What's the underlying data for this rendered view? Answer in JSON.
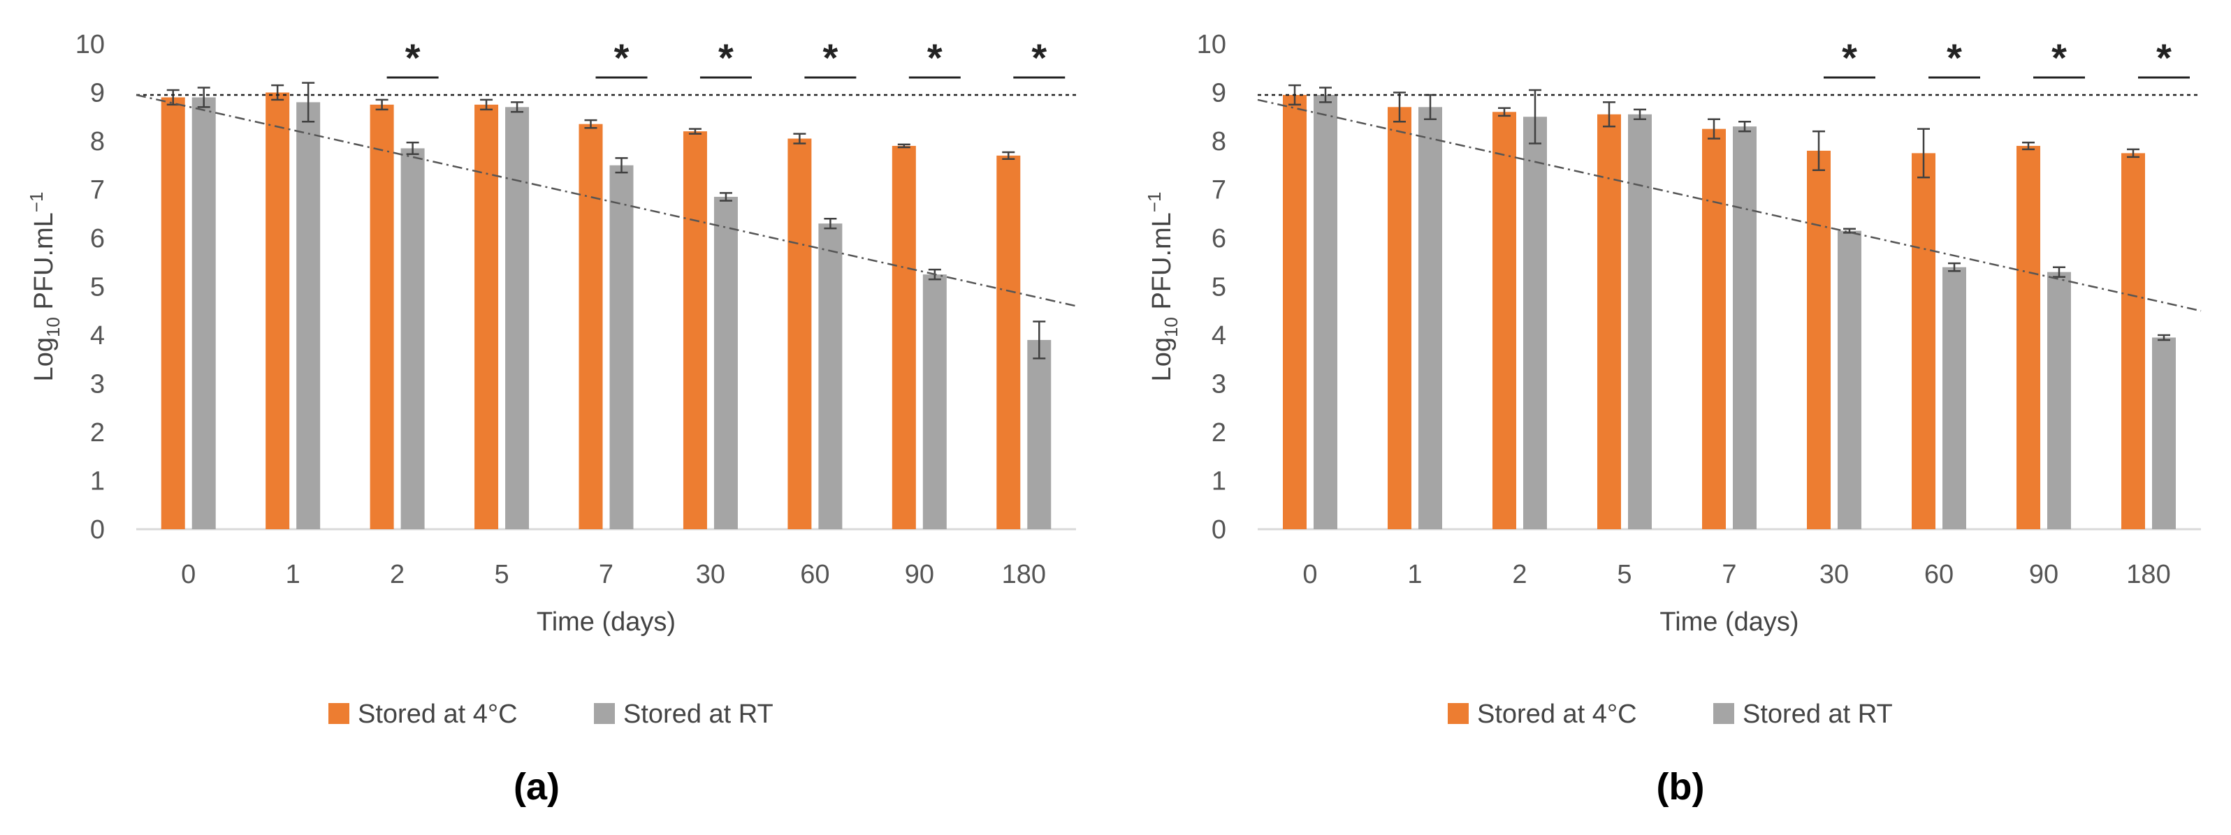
{
  "chart_data": [
    {
      "type": "bar",
      "panel_label": "(a)",
      "categories": [
        "0",
        "1",
        "2",
        "5",
        "7",
        "30",
        "60",
        "90",
        "180"
      ],
      "series": [
        {
          "name": "Stored at 4°C",
          "color": "#ED7D31",
          "values": [
            8.9,
            9.0,
            8.75,
            8.75,
            8.35,
            8.2,
            8.05,
            7.9,
            7.7
          ],
          "errors": [
            0.15,
            0.15,
            0.1,
            0.1,
            0.08,
            0.05,
            0.1,
            0.03,
            0.07
          ]
        },
        {
          "name": "Stored at RT",
          "color": "#A5A5A5",
          "values": [
            8.9,
            8.8,
            7.85,
            8.7,
            7.5,
            6.85,
            6.3,
            5.25,
            3.9
          ],
          "errors": [
            0.2,
            0.4,
            0.12,
            0.1,
            0.15,
            0.08,
            0.1,
            0.1,
            0.38
          ]
        }
      ],
      "significance": [
        "",
        "",
        "*",
        "",
        "*",
        "*",
        "*",
        "*",
        "*"
      ],
      "reference_line": 8.95,
      "trendline": {
        "start": 8.95,
        "end": 4.6
      },
      "xlabel": "Time (days)",
      "ylabel_main": "Log",
      "ylabel_sub": "10",
      "ylabel_rest": " PFU.mL",
      "ylabel_sup": "−1",
      "ylim": [
        0,
        10
      ],
      "yticks": [
        "0",
        "1",
        "2",
        "3",
        "4",
        "5",
        "6",
        "7",
        "8",
        "9",
        "10"
      ],
      "grid": false,
      "legend_position": "bottom"
    },
    {
      "type": "bar",
      "panel_label": "(b)",
      "categories": [
        "0",
        "1",
        "2",
        "5",
        "7",
        "30",
        "60",
        "90",
        "180"
      ],
      "series": [
        {
          "name": "Stored at 4°C",
          "color": "#ED7D31",
          "values": [
            8.95,
            8.7,
            8.6,
            8.55,
            8.25,
            7.8,
            7.75,
            7.9,
            7.75
          ],
          "errors": [
            0.2,
            0.3,
            0.08,
            0.25,
            0.2,
            0.4,
            0.5,
            0.07,
            0.08
          ]
        },
        {
          "name": "Stored at RT",
          "color": "#A5A5A5",
          "values": [
            8.95,
            8.7,
            8.5,
            8.55,
            8.3,
            6.15,
            5.4,
            5.3,
            3.95
          ],
          "errors": [
            0.15,
            0.25,
            0.55,
            0.1,
            0.1,
            0.04,
            0.08,
            0.1,
            0.05
          ]
        }
      ],
      "significance": [
        "",
        "",
        "",
        "",
        "",
        "*",
        "*",
        "*",
        "*"
      ],
      "reference_line": 8.95,
      "trendline": {
        "start": 8.85,
        "end": 4.5
      },
      "xlabel": "Time (days)",
      "ylabel_main": "Log",
      "ylabel_sub": "10",
      "ylabel_rest": " PFU.mL",
      "ylabel_sup": "−1",
      "ylim": [
        0,
        10
      ],
      "yticks": [
        "0",
        "1",
        "2",
        "3",
        "4",
        "5",
        "6",
        "7",
        "8",
        "9",
        "10"
      ],
      "grid": false,
      "legend_position": "bottom"
    }
  ]
}
